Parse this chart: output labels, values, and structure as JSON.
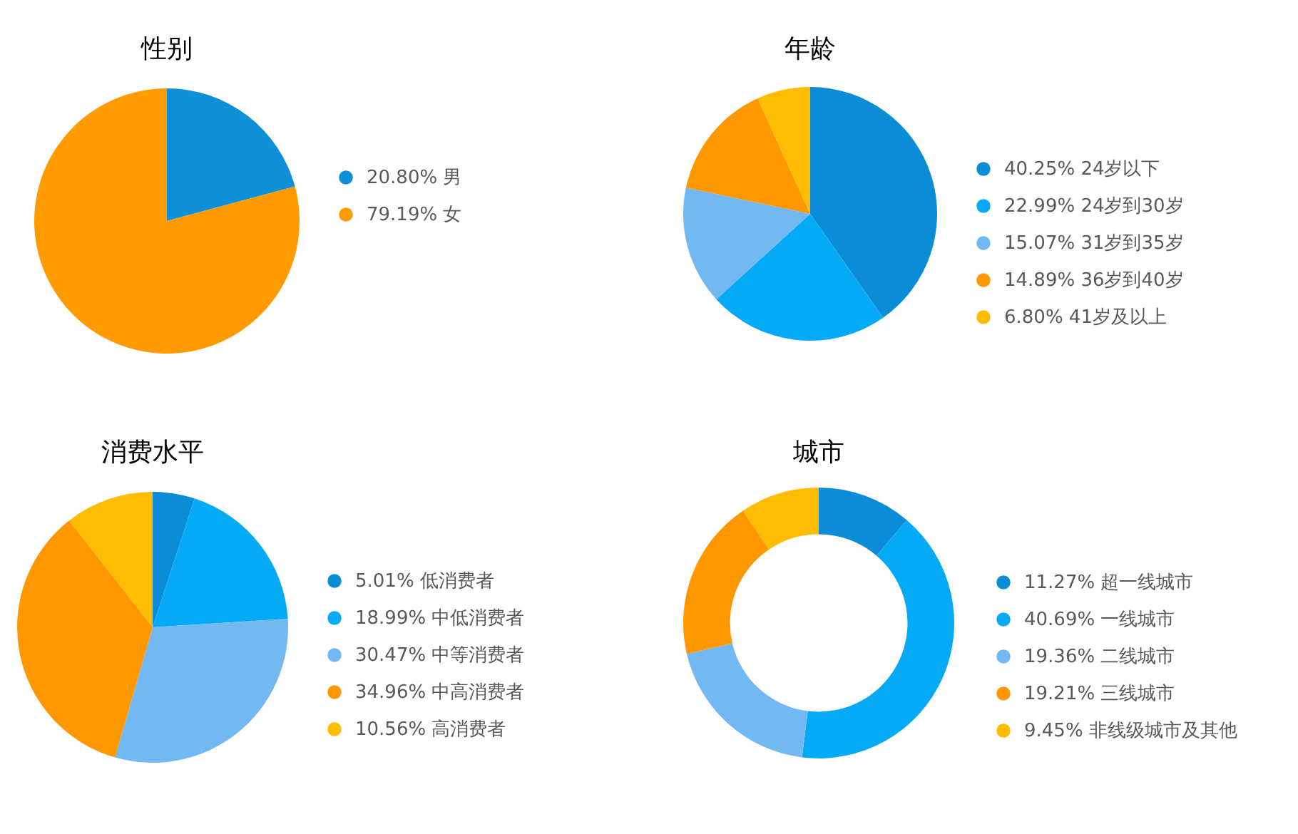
{
  "chart_data": [
    {
      "type": "pie",
      "title": "性别",
      "categories": [
        "男",
        "女"
      ],
      "values": [
        20.8,
        79.19
      ],
      "value_labels": [
        "20.80%",
        "79.19%"
      ],
      "colors": [
        "#0e8fd8",
        "#ff9b00"
      ],
      "legend": "right"
    },
    {
      "type": "pie",
      "title": "年龄",
      "categories": [
        "24岁以下",
        "24岁到30岁",
        "31岁到35岁",
        "36岁到40岁",
        "41岁及以上"
      ],
      "values": [
        40.25,
        22.99,
        15.07,
        14.89,
        6.8
      ],
      "value_labels": [
        "40.25%",
        "22.99%",
        "15.07%",
        "14.89%",
        "6.80%"
      ],
      "colors": [
        "#0b8cd6",
        "#05aaf7",
        "#72b8f2",
        "#ff9800",
        "#ffbc00"
      ],
      "legend": "right"
    },
    {
      "type": "pie",
      "title": "消费水平",
      "categories": [
        "低消费者",
        "中低消费者",
        "中等消费者",
        "中高消费者",
        "高消费者"
      ],
      "values": [
        5.01,
        18.99,
        30.47,
        34.96,
        10.56
      ],
      "value_labels": [
        "5.01%",
        "18.99%",
        "30.47%",
        "34.96%",
        "10.56%"
      ],
      "colors": [
        "#0b8cd6",
        "#05aaf7",
        "#72b8f2",
        "#ff9800",
        "#ffbc00"
      ],
      "legend": "right"
    },
    {
      "type": "donut",
      "title": "城市",
      "categories": [
        "超一线城市",
        "一线城市",
        "二线城市",
        "三线城市",
        "非线级城市及其他"
      ],
      "values": [
        11.27,
        40.69,
        19.36,
        19.21,
        9.45
      ],
      "value_labels": [
        "11.27%",
        "40.69%",
        "19.36%",
        "19.21%",
        "9.45%"
      ],
      "colors": [
        "#0b8cd6",
        "#05aaf7",
        "#72b8f2",
        "#ff9800",
        "#ffbc00"
      ],
      "legend": "right"
    }
  ]
}
